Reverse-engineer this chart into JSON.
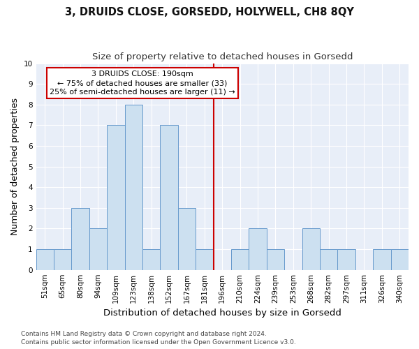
{
  "title": "3, DRUIDS CLOSE, GORSEDD, HOLYWELL, CH8 8QY",
  "subtitle": "Size of property relative to detached houses in Gorsedd",
  "xlabel": "Distribution of detached houses by size in Gorsedd",
  "ylabel": "Number of detached properties",
  "bin_labels": [
    "51sqm",
    "65sqm",
    "80sqm",
    "94sqm",
    "109sqm",
    "123sqm",
    "138sqm",
    "152sqm",
    "167sqm",
    "181sqm",
    "196sqm",
    "210sqm",
    "224sqm",
    "239sqm",
    "253sqm",
    "268sqm",
    "282sqm",
    "297sqm",
    "311sqm",
    "326sqm",
    "340sqm"
  ],
  "bar_values": [
    1,
    1,
    3,
    2,
    7,
    8,
    1,
    7,
    3,
    1,
    0,
    1,
    2,
    1,
    0,
    2,
    1,
    1,
    0,
    1,
    1
  ],
  "bar_color": "#cce0f0",
  "bar_edgecolor": "#6699cc",
  "vline_x_index": 10,
  "vline_color": "#cc0000",
  "annotation_line1": "3 DRUIDS CLOSE: 190sqm",
  "annotation_line2": "← 75% of detached houses are smaller (33)",
  "annotation_line3": "25% of semi-detached houses are larger (11) →",
  "annotation_box_edgecolor": "#cc0000",
  "ylim": [
    0,
    10
  ],
  "yticks": [
    0,
    1,
    2,
    3,
    4,
    5,
    6,
    7,
    8,
    9,
    10
  ],
  "footer_line1": "Contains HM Land Registry data © Crown copyright and database right 2024.",
  "footer_line2": "Contains public sector information licensed under the Open Government Licence v3.0.",
  "plot_bgcolor": "#e8eef8",
  "grid_color": "#ffffff",
  "title_fontsize": 10.5,
  "subtitle_fontsize": 9.5,
  "ylabel_fontsize": 9,
  "xlabel_fontsize": 9.5,
  "tick_fontsize": 7.5,
  "annot_fontsize": 8,
  "footer_fontsize": 6.5
}
